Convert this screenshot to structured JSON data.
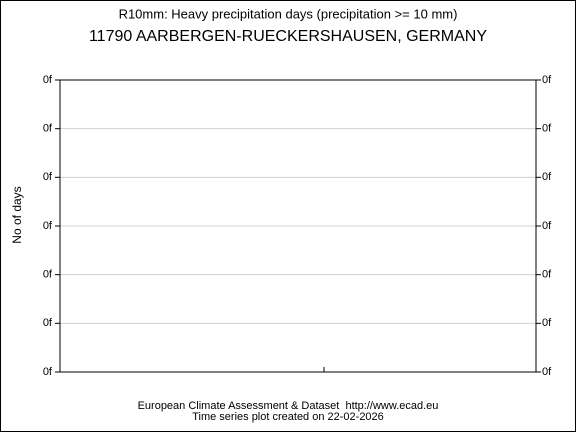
{
  "chart_data": {
    "type": "line",
    "title": "R10mm: Heavy precipitation days (precipitation >= 10 mm)",
    "subtitle": "11790 AARBERGEN-RUECKERSHAUSEN, GERMANY",
    "ylabel": "No of days",
    "ylim": [
      0,
      6
    ],
    "yticks": [
      {
        "value": 0,
        "label": "0f"
      },
      {
        "value": 1,
        "label": "0f"
      },
      {
        "value": 2,
        "label": "0f"
      },
      {
        "value": 3,
        "label": "0f"
      },
      {
        "value": 4,
        "label": "0f"
      },
      {
        "value": 5,
        "label": "0f"
      },
      {
        "value": 6,
        "label": "0f"
      }
    ],
    "grid": true,
    "footer": [
      "European Climate Assessment & Dataset  http://www.ecad.eu",
      "Time series plot created on 22-02-2026"
    ]
  }
}
